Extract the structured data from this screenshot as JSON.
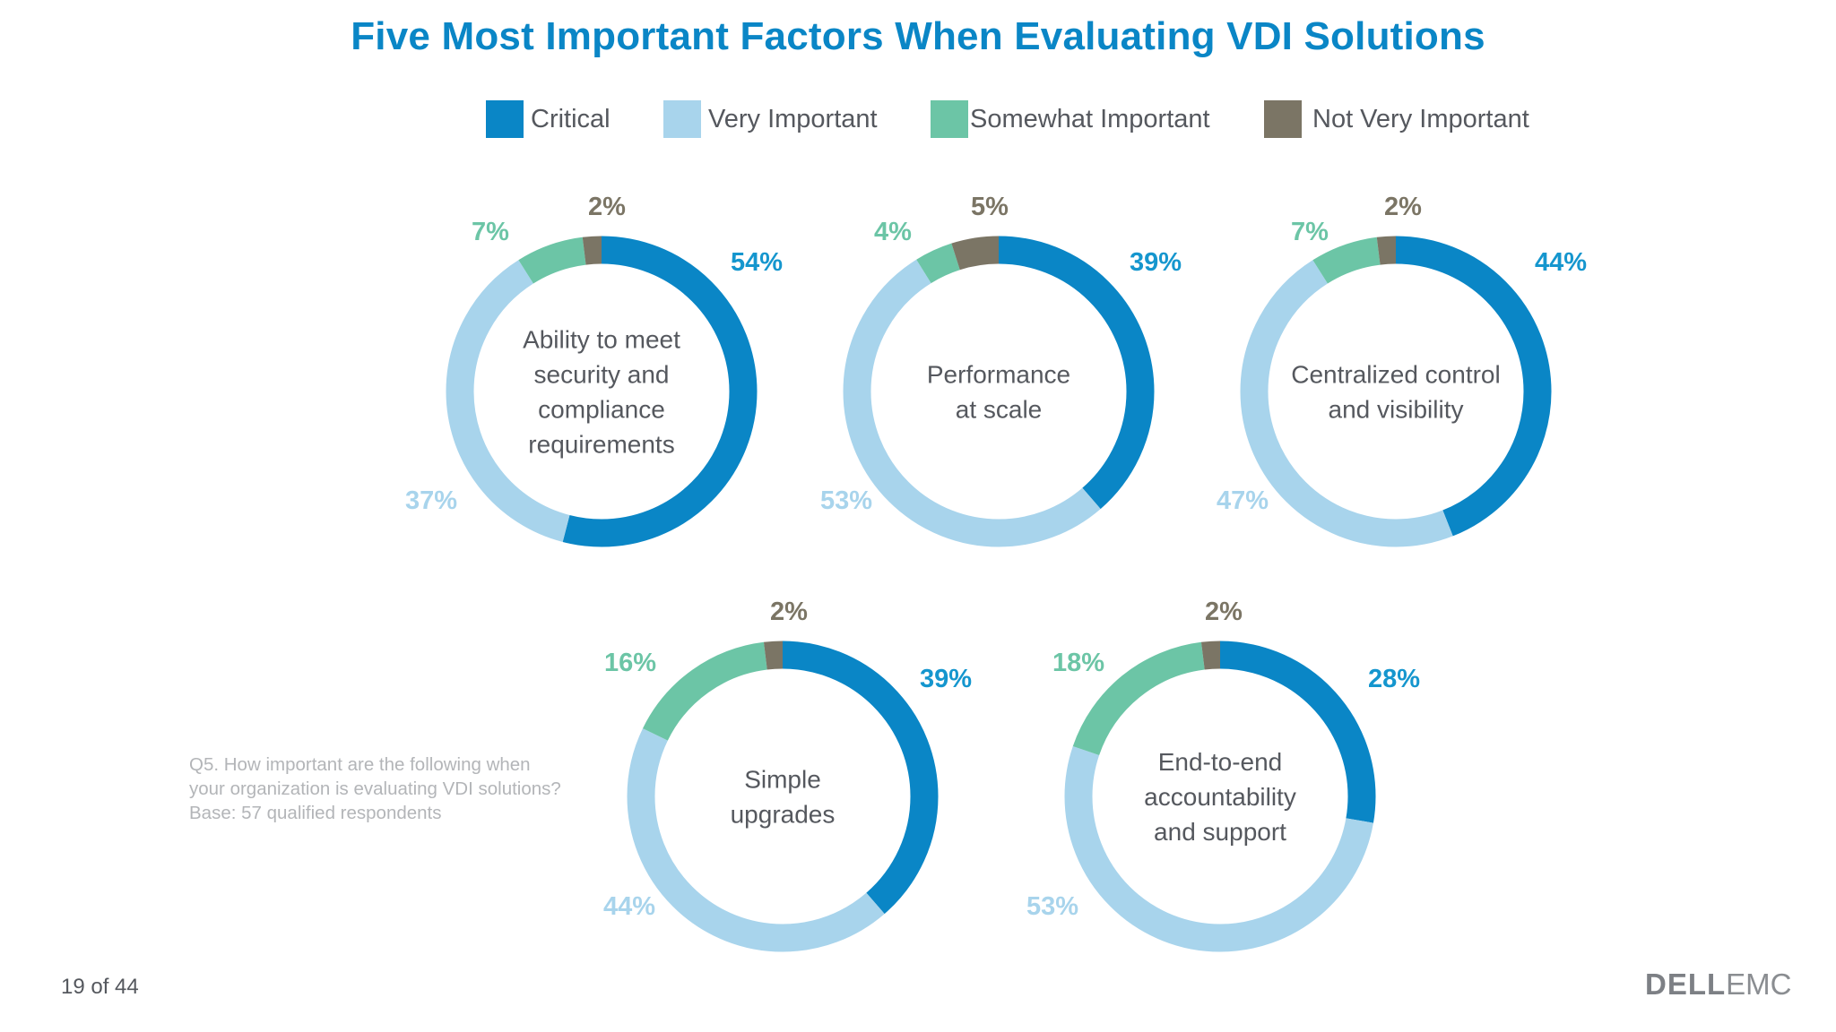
{
  "chart_data": {
    "type": "donut",
    "title": "Five Most Important Factors When Evaluating VDI Solutions",
    "legend": {
      "placement": "top-center",
      "entries": [
        {
          "name": "Critical",
          "color": "#0a86c6"
        },
        {
          "name": "Very Important",
          "color": "#a8d4ec"
        },
        {
          "name": "Somewhat Important",
          "color": "#6cc5a6"
        },
        {
          "name": "Not Very Important",
          "color": "#7b7565"
        }
      ]
    },
    "categories": [
      "Critical",
      "Very Important",
      "Somewhat Important",
      "Not Very Important"
    ],
    "label_colors": [
      "#1596ce",
      "#a8d4ec",
      "#6cc5a6",
      "#7b7565"
    ],
    "charts": [
      {
        "label_lines": [
          "Ability to meet",
          "security and",
          "compliance",
          "requirements"
        ],
        "values": [
          54,
          37,
          7,
          2
        ],
        "labels": [
          "54%",
          "37%",
          "7%",
          "2%"
        ]
      },
      {
        "label_lines": [
          "Performance",
          "at scale"
        ],
        "values": [
          39,
          53,
          4,
          5
        ],
        "labels": [
          "39%",
          "53%",
          "4%",
          "5%"
        ]
      },
      {
        "label_lines": [
          "Centralized control",
          "and visibility"
        ],
        "values": [
          44,
          47,
          7,
          2
        ],
        "labels": [
          "44%",
          "47%",
          "7%",
          "2%"
        ]
      },
      {
        "label_lines": [
          "Simple",
          "upgrades"
        ],
        "values": [
          39,
          44,
          16,
          2
        ],
        "labels": [
          "39%",
          "44%",
          "16%",
          "2%"
        ]
      },
      {
        "label_lines": [
          "End-to-end",
          "accountability",
          "and support"
        ],
        "values": [
          28,
          53,
          18,
          2
        ],
        "labels": [
          "28%",
          "53%",
          "18%",
          "2%"
        ]
      }
    ],
    "unit": "%"
  },
  "footnote": {
    "question": "Q5. How important are the following when your organization is evaluating VDI solutions?",
    "base": "Base: 57 qualified respondents"
  },
  "page": {
    "number": "19 of 44"
  },
  "brand": {
    "dell": "DELL",
    "emc": "EMC"
  },
  "colors": {
    "title": "#0a86c6"
  }
}
